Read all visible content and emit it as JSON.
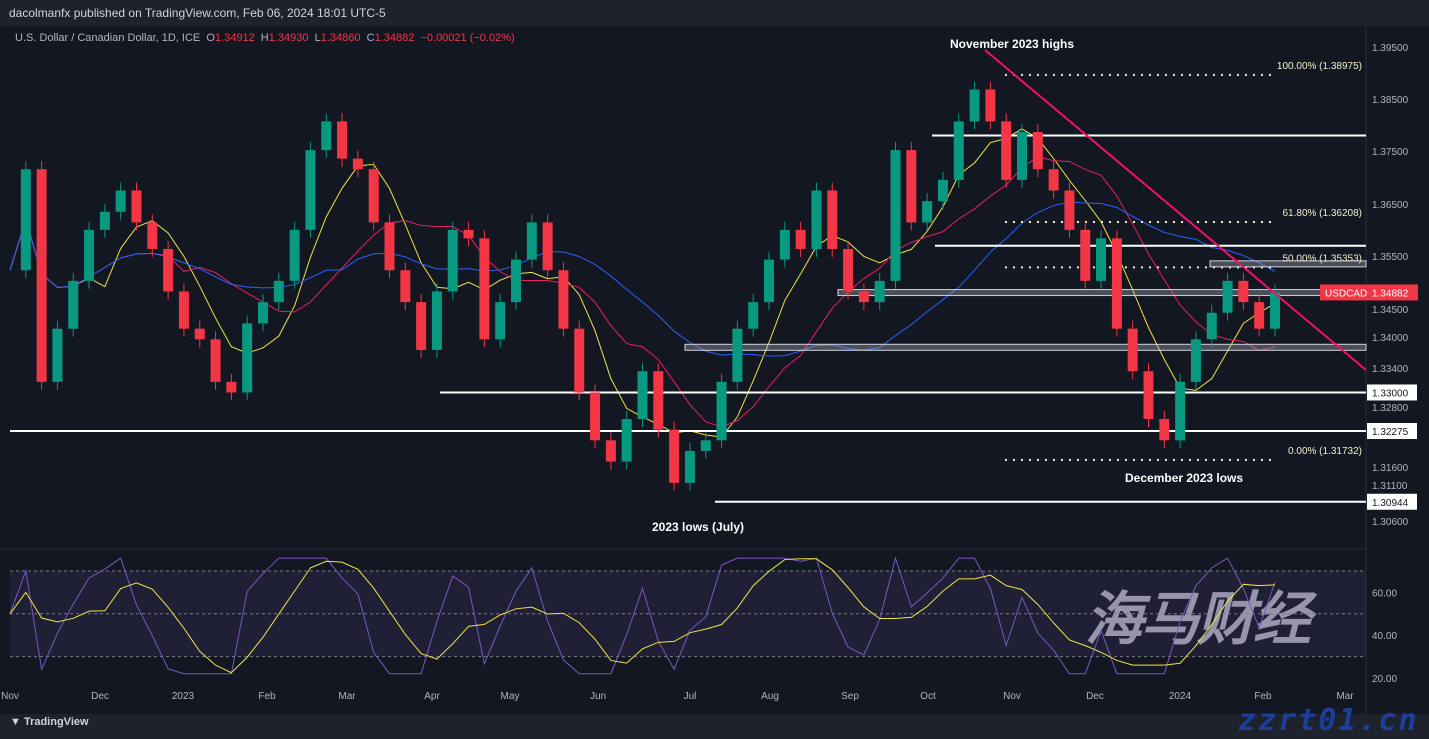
{
  "header": {
    "published": "dacolmanfx published on TradingView.com, Feb 06, 2024 18:01 UTC-5",
    "symbol": "U.S. Dollar / Canadian Dollar, 1D, ICE",
    "o": "1.34912",
    "h": "1.34930",
    "l": "1.34860",
    "c": "1.34882",
    "change": "−0.00021 (−0.02%)"
  },
  "colors": {
    "up": "#089981",
    "down": "#f23645",
    "ma50": "#f0e442",
    "ma100": "#e91e63",
    "ma200": "#2962ff",
    "trendline": "#f50f6a",
    "rsi": "#7e57c2",
    "rsi_ma": "#f0e442"
  },
  "footer": {
    "brand": "TradingView"
  },
  "watermark": {
    "cn": "海马财经",
    "url": "zzrt01.cn"
  },
  "chart_data": {
    "type": "candlestick",
    "symbol": "USDCAD",
    "last_price": "1.34882",
    "period": "Nov 2022 – Feb 2024",
    "x_ticks": [
      "Nov",
      "Dec",
      "2023",
      "Feb",
      "Mar",
      "Apr",
      "May",
      "Jun",
      "Jul",
      "Aug",
      "Sep",
      "Oct",
      "Nov",
      "Dec",
      "2024",
      "Feb",
      "Mar"
    ],
    "y_ticks": [
      "1.39500",
      "1.38500",
      "1.37500",
      "1.36500",
      "1.35500",
      "1.34500",
      "1.34000",
      "1.33400",
      "1.32800",
      "1.31600",
      "1.31100",
      "1.30600"
    ],
    "ylim": [
      1.306,
      1.395
    ],
    "closes": [
      1.353,
      1.372,
      1.332,
      1.342,
      1.351,
      1.3606,
      1.364,
      1.368,
      1.362,
      1.357,
      1.349,
      1.342,
      1.34,
      1.332,
      1.33,
      1.343,
      1.347,
      1.351,
      1.3606,
      1.3756,
      1.381,
      1.374,
      1.372,
      1.362,
      1.353,
      1.347,
      1.338,
      1.349,
      1.3606,
      1.359,
      1.34,
      1.347,
      1.355,
      1.362,
      1.353,
      1.342,
      1.33,
      1.321,
      1.317,
      1.325,
      1.334,
      1.323,
      1.313,
      1.319,
      1.321,
      1.332,
      1.342,
      1.347,
      1.355,
      1.3606,
      1.357,
      1.368,
      1.357,
      1.349,
      1.347,
      1.351,
      1.3756,
      1.362,
      1.366,
      1.37,
      1.381,
      1.387,
      1.381,
      1.37,
      1.379,
      1.372,
      1.368,
      1.3606,
      1.351,
      1.359,
      1.342,
      1.334,
      1.325,
      1.321,
      1.332,
      1.34,
      1.345,
      1.351,
      1.347,
      1.342,
      1.3488
    ],
    "levels": [
      {
        "price": 1.37835,
        "from": "Oct 2023"
      },
      {
        "price": 1.3576,
        "from": "Oct 2023"
      },
      {
        "price": 1.33,
        "from": "Apr 2023",
        "label": "1.33000"
      },
      {
        "price": 1.32275,
        "from": "Nov 2022",
        "label": "1.32275"
      },
      {
        "price": 1.30944,
        "from": "Jul 2023",
        "label": "1.30944"
      }
    ],
    "zones": [
      1.3488,
      1.3542,
      1.3385
    ],
    "fibonacci": [
      {
        "label": "100.00% (1.38975)",
        "price": 1.38975
      },
      {
        "label": "61.80% (1.36208)",
        "price": 1.36208
      },
      {
        "label": "50.00% (1.35353)",
        "price": 1.35353
      },
      {
        "label": "0.00% (1.31732)",
        "price": 1.31732
      }
    ],
    "annotations": {
      "nov_highs": "November 2023 highs",
      "dec_lows": "December 2023 lows",
      "july_lows": "2023 lows (July)"
    },
    "moving_averages": [
      "50",
      "100",
      "200"
    ],
    "rsi": {
      "levels": [
        70,
        50,
        30
      ],
      "y_ticks": [
        "60.00",
        "40.00",
        "20.00"
      ],
      "ylim": [
        15,
        80
      ]
    }
  }
}
